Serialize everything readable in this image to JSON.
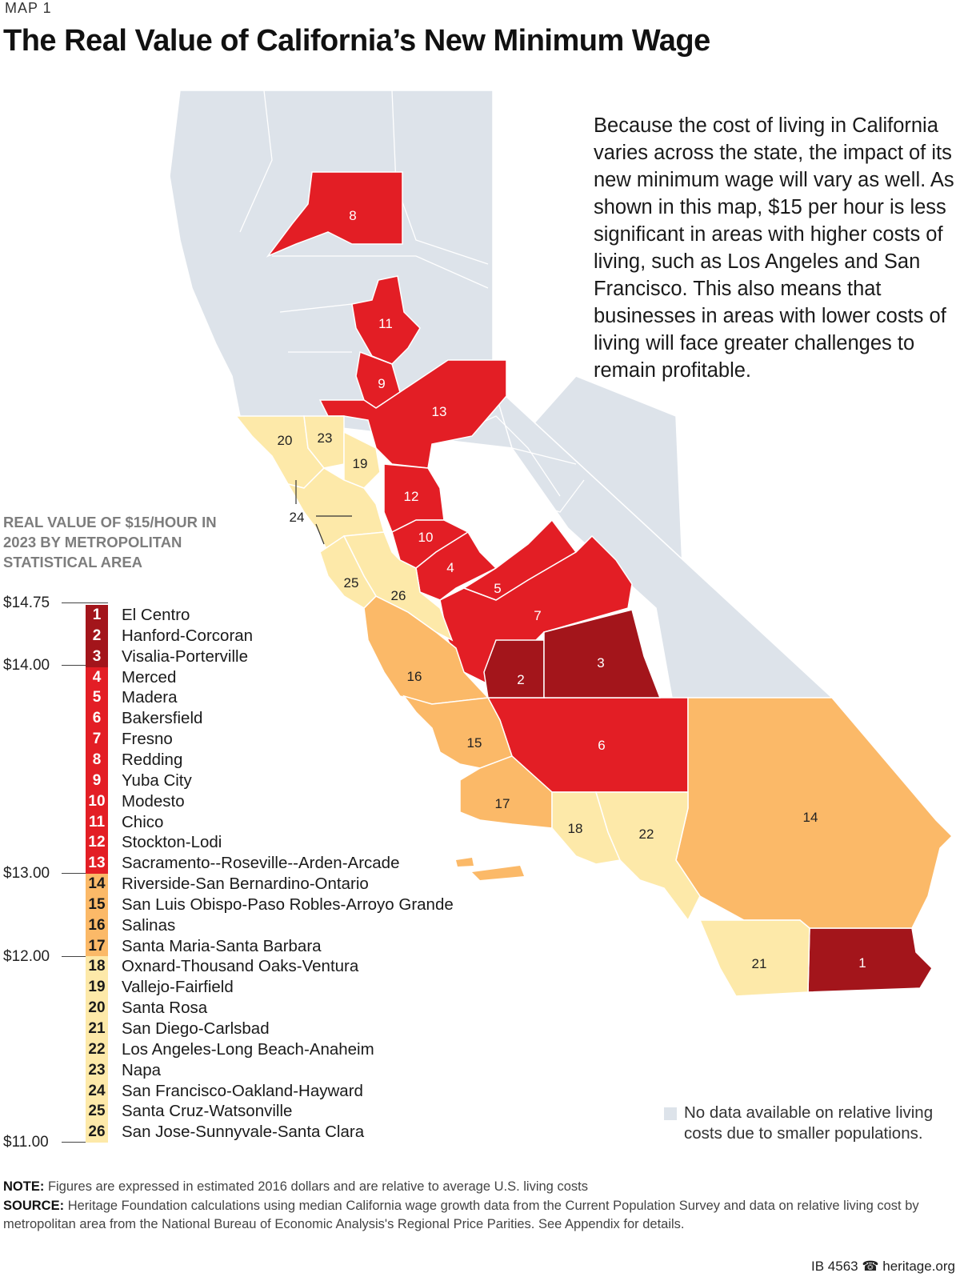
{
  "eyebrow": "MAP 1",
  "title": "The Real Value of California’s New Minimum Wage",
  "description": "Because the cost of living in California varies across the state, the impact of its new minimum wage will vary as well. As shown in this map, $15 per hour is less significant in areas with higher costs of living, such as Los Angeles and San Francisco. This also means that businesses in areas with lower costs of living will face greater challenges to remain profitable.",
  "legend": {
    "title": "REAL VALUE OF $15/HOUR IN 2023 BY METROPOLITAN STATISTICAL AREA",
    "scale_ticks": [
      "$14.75",
      "$14.00",
      "$13.00",
      "$12.00",
      "$11.00"
    ],
    "tier_colors": {
      "dark": "#a3151b",
      "red": "#e31e25",
      "orange": "#fbb968",
      "pale": "#fde9a9"
    },
    "no_data_color": "#dde3ea",
    "no_data_label": "No data available on relative living costs due to smaller populations.",
    "items": [
      {
        "n": "1",
        "name": "El Centro",
        "tier": "dark"
      },
      {
        "n": "2",
        "name": "Hanford-Corcoran",
        "tier": "dark"
      },
      {
        "n": "3",
        "name": "Visalia-Porterville",
        "tier": "dark"
      },
      {
        "n": "4",
        "name": "Merced",
        "tier": "red"
      },
      {
        "n": "5",
        "name": "Madera",
        "tier": "red"
      },
      {
        "n": "6",
        "name": "Bakersfield",
        "tier": "red"
      },
      {
        "n": "7",
        "name": "Fresno",
        "tier": "red"
      },
      {
        "n": "8",
        "name": "Redding",
        "tier": "red"
      },
      {
        "n": "9",
        "name": "Yuba City",
        "tier": "red"
      },
      {
        "n": "10",
        "name": "Modesto",
        "tier": "red"
      },
      {
        "n": "11",
        "name": "Chico",
        "tier": "red"
      },
      {
        "n": "12",
        "name": "Stockton-Lodi",
        "tier": "red"
      },
      {
        "n": "13",
        "name": "Sacramento--Roseville--Arden-Arcade",
        "tier": "red"
      },
      {
        "n": "14",
        "name": "Riverside-San Bernardino-Ontario",
        "tier": "orange"
      },
      {
        "n": "15",
        "name": "San Luis Obispo-Paso Robles-Arroyo Grande",
        "tier": "orange"
      },
      {
        "n": "16",
        "name": "Salinas",
        "tier": "orange"
      },
      {
        "n": "17",
        "name": "Santa Maria-Santa Barbara",
        "tier": "orange"
      },
      {
        "n": "18",
        "name": "Oxnard-Thousand Oaks-Ventura",
        "tier": "pale"
      },
      {
        "n": "19",
        "name": "Vallejo-Fairfield",
        "tier": "pale"
      },
      {
        "n": "20",
        "name": "Santa Rosa",
        "tier": "pale"
      },
      {
        "n": "21",
        "name": "San Diego-Carlsbad",
        "tier": "pale"
      },
      {
        "n": "22",
        "name": "Los Angeles-Long Beach-Anaheim",
        "tier": "pale"
      },
      {
        "n": "23",
        "name": "Napa",
        "tier": "pale"
      },
      {
        "n": "24",
        "name": "San Francisco-Oakland-Hayward",
        "tier": "pale"
      },
      {
        "n": "25",
        "name": "Santa Cruz-Watsonville",
        "tier": "pale"
      },
      {
        "n": "26",
        "name": "San Jose-Sunnyvale-Santa Clara",
        "tier": "pale"
      }
    ]
  },
  "notes": {
    "note_label": "NOTE:",
    "note_text": "Figures are expressed in estimated 2016 dollars and are relative to average U.S. living costs",
    "source_label": "SOURCE:",
    "source_text": "Heritage Foundation calculations using median California wage growth data from the Current Population Survey and data on relative living cost by metropolitan area from the National Bureau of Economic Analysis's Regional Price Parities. See Appendix for details."
  },
  "footer": {
    "id": "IB 4563",
    "bell": "☎",
    "site": "heritage.org"
  }
}
